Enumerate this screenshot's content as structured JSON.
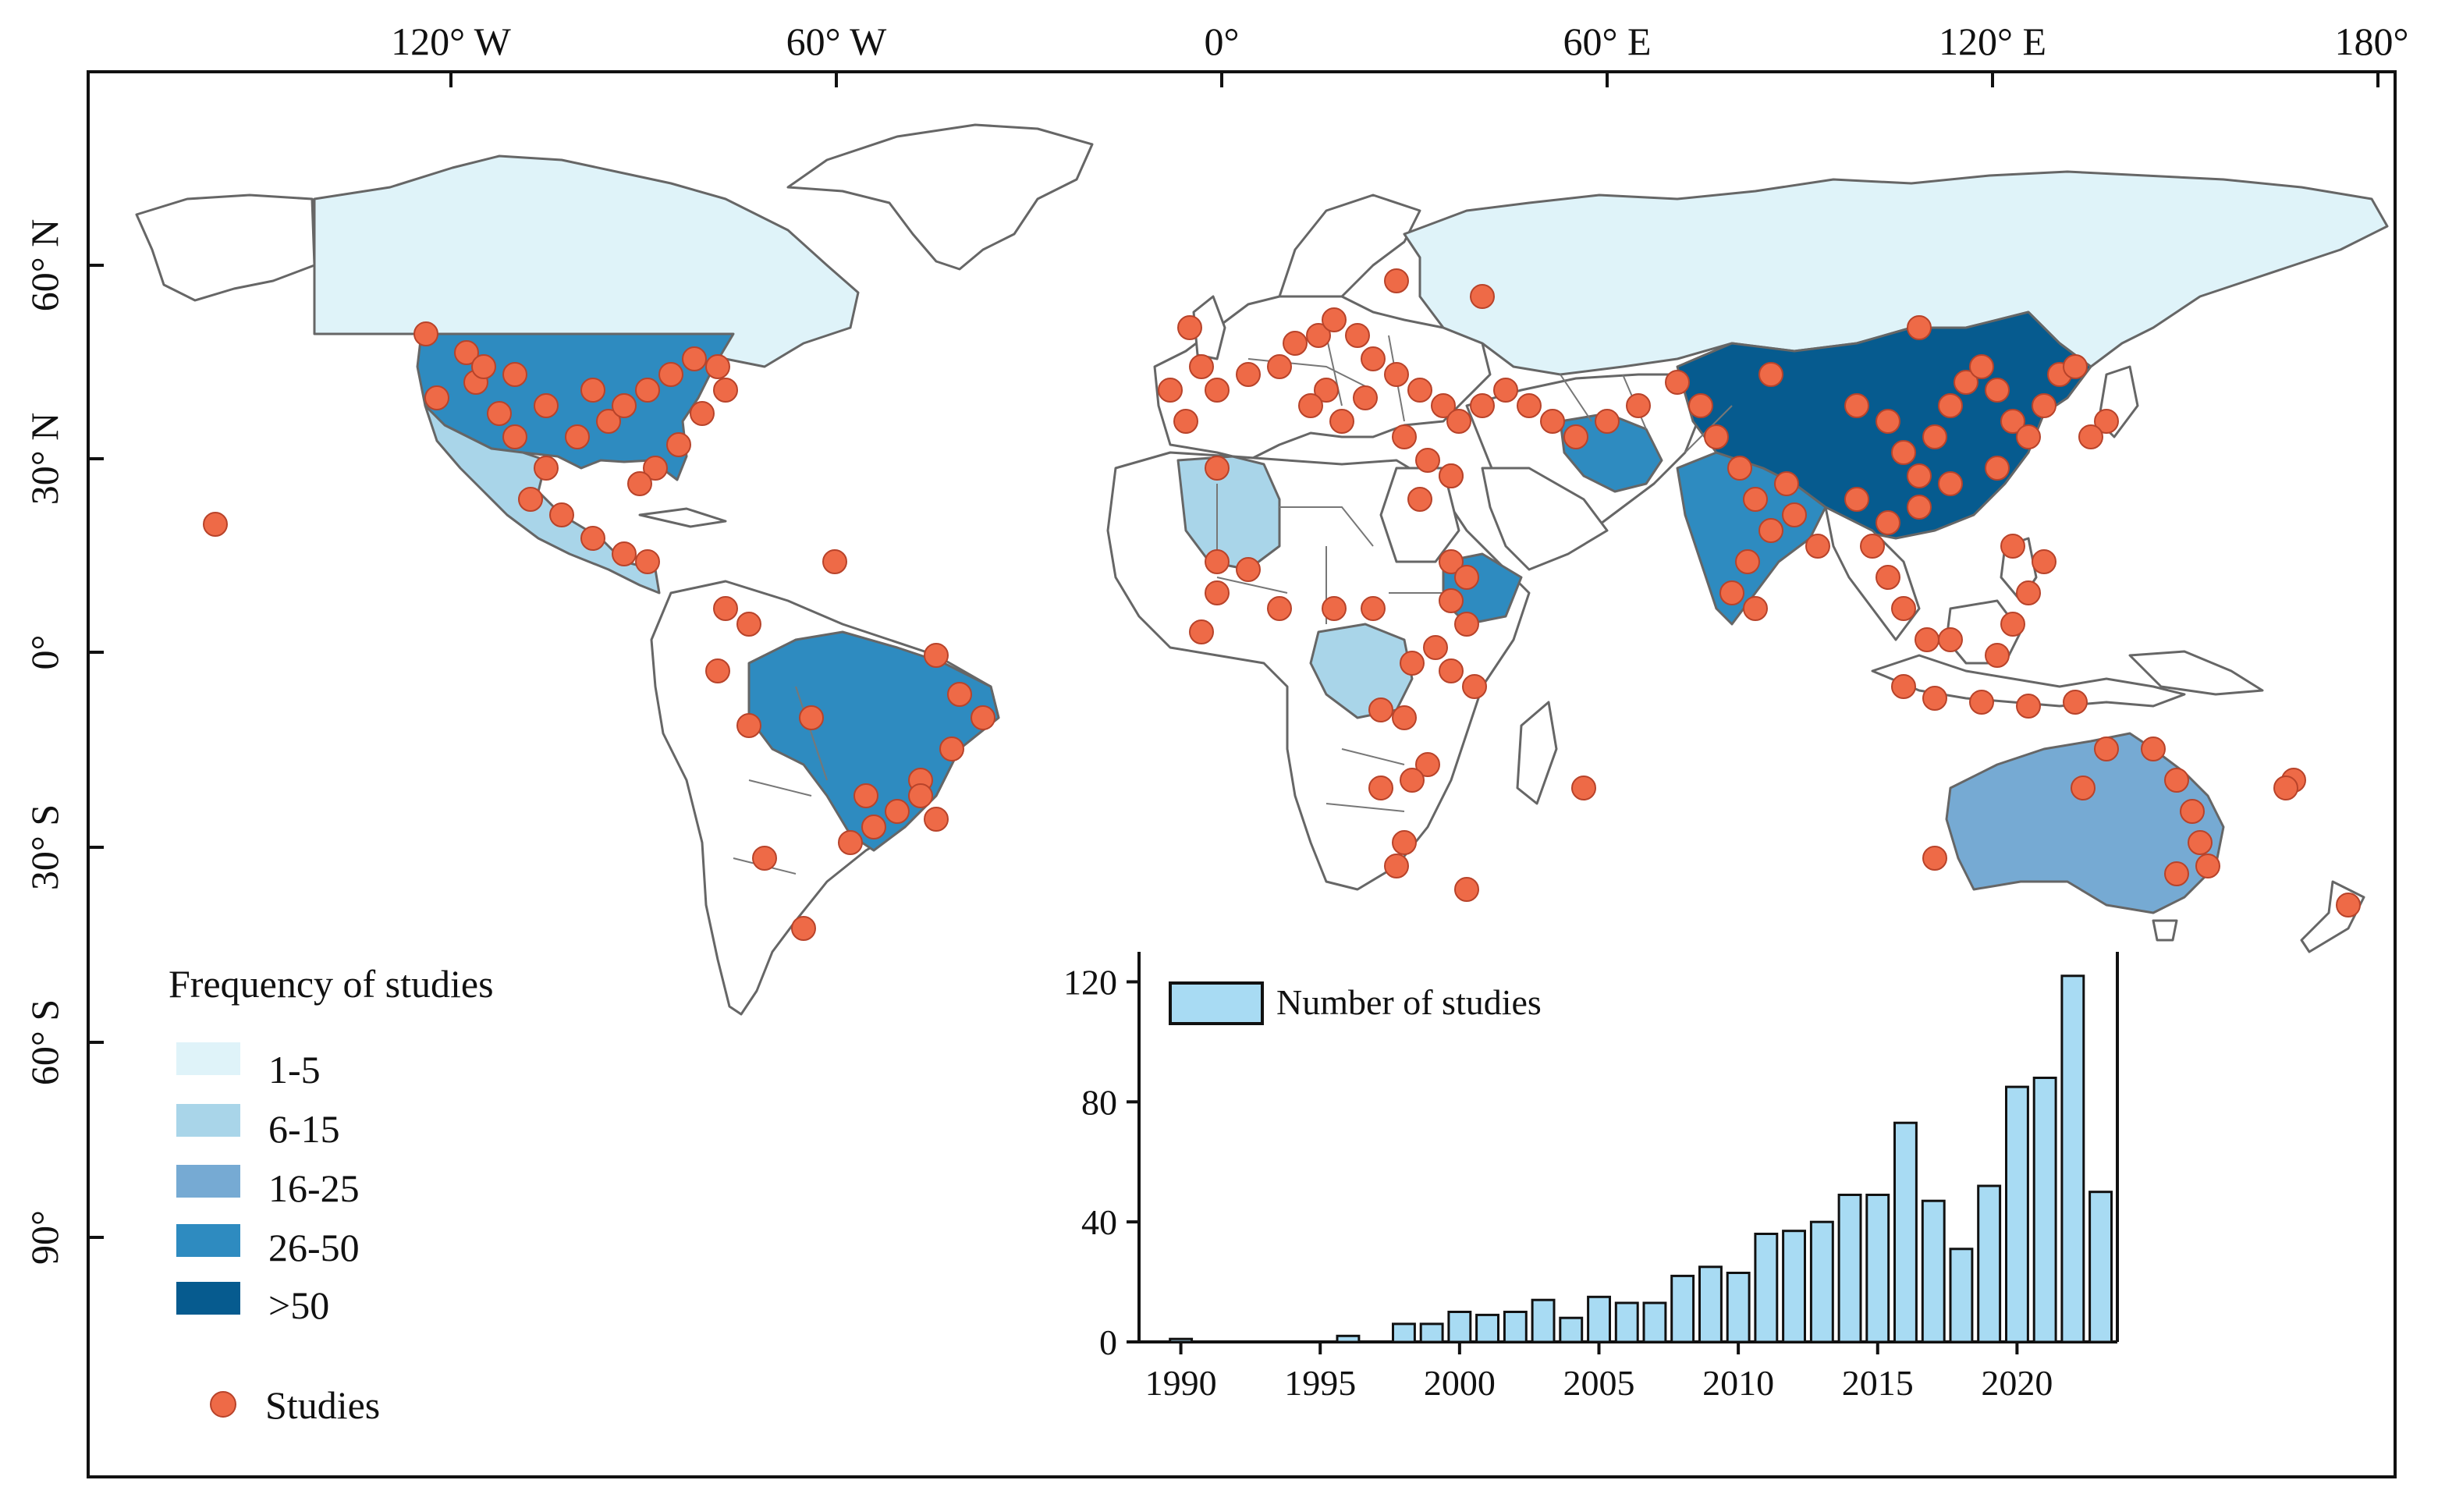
{
  "map": {
    "lon_labels": [
      "120° W",
      "60° W",
      "0°",
      "60° E",
      "120° E",
      "180°"
    ],
    "lat_labels": [
      "60° N",
      "30° N",
      "0°",
      "30° S",
      "60° S",
      "90°"
    ]
  },
  "legend": {
    "title": "Frequency of studies",
    "classes": [
      {
        "label": "1-5",
        "color": "#dff3f9"
      },
      {
        "label": "6-15",
        "color": "#a9d5e9"
      },
      {
        "label": "16-25",
        "color": "#76aad3"
      },
      {
        "label": "26-50",
        "color": "#2e8bc0"
      },
      {
        "label": ">50",
        "color": "#065b8f"
      }
    ],
    "studies_label": "Studies",
    "studies_color": "#ee6a47"
  },
  "countries": {
    "russia": "1-5",
    "canada": "1-5",
    "usa": "26-50",
    "mexico": "6-15",
    "brazil": "26-50",
    "china": ">50",
    "india": "26-50",
    "australia": "16-25",
    "algeria": "6-15",
    "drc": "6-15",
    "ethiopia": "26-50",
    "iran": "26-50"
  },
  "chart_data": {
    "type": "bar",
    "title": "",
    "legend": [
      "Number of studies"
    ],
    "xlabel": "",
    "ylabel": "",
    "categories": [
      1990,
      1991,
      1992,
      1993,
      1994,
      1995,
      1996,
      1997,
      1998,
      1999,
      2000,
      2001,
      2002,
      2003,
      2004,
      2005,
      2006,
      2007,
      2008,
      2009,
      2010,
      2011,
      2012,
      2013,
      2014,
      2015,
      2016,
      2017,
      2018,
      2019,
      2020,
      2021,
      2022,
      2023
    ],
    "values": [
      1,
      0,
      0,
      0,
      0,
      0,
      2,
      0,
      6,
      6,
      10,
      9,
      10,
      14,
      8,
      15,
      13,
      13,
      22,
      25,
      23,
      36,
      37,
      40,
      49,
      49,
      73,
      47,
      31,
      52,
      85,
      88,
      122,
      50
    ],
    "x_ticks": [
      "1990",
      "1995",
      "2000",
      "2005",
      "2010",
      "2015",
      "2020"
    ],
    "y_ticks": [
      "0",
      "40",
      "80",
      "120"
    ],
    "ylim": [
      0,
      130
    ],
    "xlim": [
      1988.5,
      2023.6
    ],
    "bar_color": "#a8dbf3",
    "legend_position": "top-left"
  }
}
